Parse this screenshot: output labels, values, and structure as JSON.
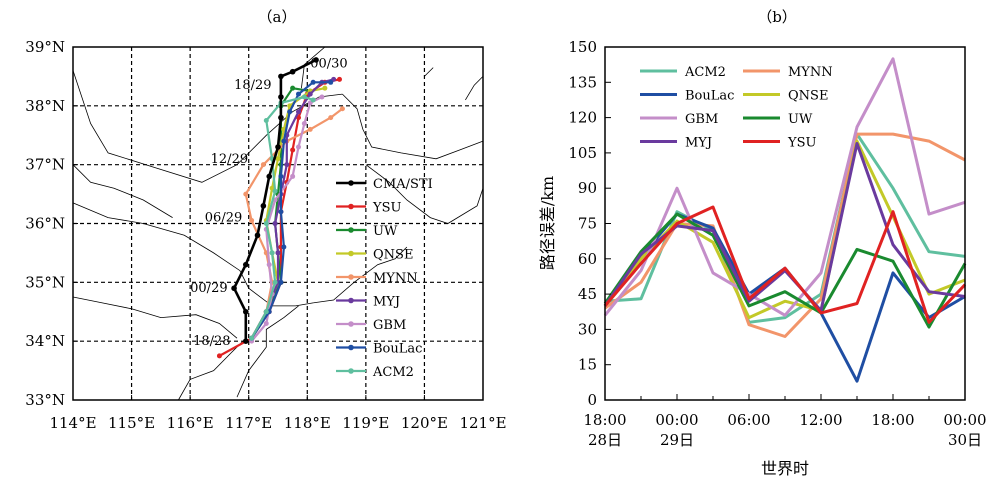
{
  "figure": {
    "panel_a_label": "（a）",
    "panel_b_label": "（b）"
  },
  "chart_data": [
    {
      "type": "line",
      "panel": "a",
      "x_ticks": [
        "114°E",
        "115°E",
        "116°E",
        "117°E",
        "118°E",
        "119°E",
        "120°E",
        "121°E"
      ],
      "y_ticks": [
        "33°N",
        "34°N",
        "35°N",
        "36°N",
        "37°N",
        "38°N",
        "39°N"
      ],
      "xlim": [
        114,
        121
      ],
      "ylim": [
        33,
        39
      ],
      "grid": true,
      "legend_position": "right",
      "time_labels": [
        {
          "text": "00/30",
          "lon": 118.05,
          "lat": 38.72
        },
        {
          "text": "18/29",
          "lon": 116.75,
          "lat": 38.35
        },
        {
          "text": "12/29",
          "lon": 116.35,
          "lat": 37.1
        },
        {
          "text": "06/29",
          "lon": 116.25,
          "lat": 36.1
        },
        {
          "text": "00/29",
          "lon": 116.0,
          "lat": 34.9
        },
        {
          "text": "18/28",
          "lon": 116.05,
          "lat": 34.0
        }
      ],
      "series": [
        {
          "name": "CMA/STI",
          "color": "#000000",
          "points": [
            [
              116.95,
              34.0
            ],
            [
              116.95,
              34.5
            ],
            [
              116.75,
              34.9
            ],
            [
              116.95,
              35.3
            ],
            [
              117.15,
              35.8
            ],
            [
              117.25,
              36.3
            ],
            [
              117.35,
              36.8
            ],
            [
              117.5,
              37.3
            ],
            [
              117.55,
              37.8
            ],
            [
              117.55,
              38.15
            ],
            [
              117.55,
              38.5
            ],
            [
              117.75,
              38.58
            ],
            [
              118.15,
              38.78
            ]
          ]
        },
        {
          "name": "YSU",
          "color": "#e02222",
          "points": [
            [
              116.5,
              33.75
            ],
            [
              117.05,
              34.05
            ],
            [
              117.35,
              34.5
            ],
            [
              117.55,
              35.0
            ],
            [
              117.55,
              35.6
            ],
            [
              117.55,
              36.2
            ],
            [
              117.65,
              36.7
            ],
            [
              117.75,
              37.25
            ],
            [
              117.85,
              37.8
            ],
            [
              118.0,
              38.2
            ],
            [
              118.3,
              38.4
            ],
            [
              118.55,
              38.45
            ]
          ]
        },
        {
          "name": "UW",
          "color": "#1a8a2f",
          "points": [
            [
              117.05,
              34.05
            ],
            [
              117.3,
              34.5
            ],
            [
              117.55,
              35.0
            ],
            [
              117.5,
              35.5
            ],
            [
              117.45,
              36.0
            ],
            [
              117.5,
              36.5
            ],
            [
              117.55,
              37.0
            ],
            [
              117.55,
              37.6
            ],
            [
              117.55,
              38.0
            ],
            [
              117.75,
              38.3
            ],
            [
              118.05,
              38.25
            ]
          ]
        },
        {
          "name": "QNSE",
          "color": "#c3c928",
          "points": [
            [
              117.05,
              34.05
            ],
            [
              117.3,
              34.5
            ],
            [
              117.5,
              35.0
            ],
            [
              117.4,
              35.5
            ],
            [
              117.3,
              36.05
            ],
            [
              117.4,
              36.6
            ],
            [
              117.5,
              37.1
            ],
            [
              117.6,
              37.6
            ],
            [
              117.7,
              38.0
            ],
            [
              118.05,
              38.25
            ],
            [
              118.3,
              38.3
            ]
          ]
        },
        {
          "name": "MYNN",
          "color": "#f2956a",
          "points": [
            [
              117.05,
              34.05
            ],
            [
              117.3,
              34.5
            ],
            [
              117.4,
              35.0
            ],
            [
              117.3,
              35.5
            ],
            [
              117.05,
              36.05
            ],
            [
              116.95,
              36.5
            ],
            [
              117.25,
              37.0
            ],
            [
              117.65,
              37.4
            ],
            [
              118.05,
              37.6
            ],
            [
              118.4,
              37.8
            ],
            [
              118.6,
              37.95
            ]
          ]
        },
        {
          "name": "MYJ",
          "color": "#6a3a9e",
          "points": [
            [
              117.05,
              34.05
            ],
            [
              117.3,
              34.5
            ],
            [
              117.5,
              35.0
            ],
            [
              117.5,
              35.5
            ],
            [
              117.45,
              36.0
            ],
            [
              117.55,
              36.5
            ],
            [
              117.65,
              37.0
            ],
            [
              117.65,
              37.5
            ],
            [
              117.85,
              37.9
            ],
            [
              118.05,
              38.2
            ],
            [
              118.25,
              38.4
            ],
            [
              118.45,
              38.45
            ]
          ]
        },
        {
          "name": "GBM",
          "color": "#c48ec9",
          "points": [
            [
              117.05,
              34.0
            ],
            [
              117.3,
              34.3
            ],
            [
              117.4,
              34.8
            ],
            [
              117.35,
              35.3
            ],
            [
              117.3,
              35.9
            ],
            [
              117.45,
              36.4
            ],
            [
              117.75,
              36.8
            ],
            [
              117.85,
              37.3
            ],
            [
              117.95,
              37.7
            ],
            [
              118.05,
              38.05
            ],
            [
              118.25,
              38.15
            ]
          ]
        },
        {
          "name": "BouLac",
          "color": "#1f4ea3",
          "points": [
            [
              117.05,
              34.05
            ],
            [
              117.35,
              34.5
            ],
            [
              117.55,
              35.0
            ],
            [
              117.6,
              35.6
            ],
            [
              117.55,
              36.2
            ],
            [
              117.55,
              36.8
            ],
            [
              117.6,
              37.4
            ],
            [
              117.7,
              37.9
            ],
            [
              117.85,
              38.2
            ],
            [
              118.1,
              38.4
            ],
            [
              118.4,
              38.4
            ]
          ]
        },
        {
          "name": "ACM2",
          "color": "#5fbf9f",
          "points": [
            [
              117.05,
              34.05
            ],
            [
              117.3,
              34.5
            ],
            [
              117.45,
              35.0
            ],
            [
              117.4,
              35.5
            ],
            [
              117.3,
              36.0
            ],
            [
              117.45,
              36.55
            ],
            [
              117.4,
              37.1
            ],
            [
              117.3,
              37.75
            ],
            [
              117.55,
              38.05
            ],
            [
              117.95,
              38.15
            ],
            [
              118.1,
              38.1
            ]
          ]
        }
      ]
    },
    {
      "type": "line",
      "panel": "b",
      "ylabel": "路径误差/km",
      "xlabel": "世界时",
      "x_hours": [
        0,
        3,
        6,
        9,
        12,
        15,
        18,
        21,
        24,
        27,
        30
      ],
      "x_ticks": [
        {
          "hour": 0,
          "line1": "18:00",
          "line2": "28日"
        },
        {
          "hour": 6,
          "line1": "00:00",
          "line2": "29日"
        },
        {
          "hour": 12,
          "line1": "06:00",
          "line2": ""
        },
        {
          "hour": 18,
          "line1": "12:00",
          "line2": ""
        },
        {
          "hour": 24,
          "line1": "18:00",
          "line2": ""
        },
        {
          "hour": 30,
          "line1": "00:00",
          "line2": "30日"
        }
      ],
      "y_ticks": [
        "0",
        "15",
        "30",
        "45",
        "60",
        "75",
        "90",
        "105",
        "120",
        "135",
        "150"
      ],
      "xlim": [
        0,
        30
      ],
      "ylim": [
        0,
        150
      ],
      "grid": false,
      "legend_position": "top-left",
      "series": [
        {
          "name": "ACM2",
          "color": "#5fbf9f",
          "values": [
            42,
            43,
            80,
            72,
            33,
            35,
            45,
            113,
            90,
            63,
            61
          ]
        },
        {
          "name": "MYNN",
          "color": "#f2956a",
          "values": [
            39,
            50,
            75,
            74,
            32,
            27,
            43,
            113,
            113,
            110,
            102
          ]
        },
        {
          "name": "BouLac",
          "color": "#1f4ea3",
          "values": [
            40,
            61,
            79,
            73,
            45,
            56,
            37,
            8,
            54,
            35,
            44
          ]
        },
        {
          "name": "QNSE",
          "color": "#c3c928",
          "values": [
            40,
            60,
            76,
            67,
            35,
            42,
            38,
            110,
            78,
            45,
            51
          ]
        },
        {
          "name": "GBM",
          "color": "#c48ec9",
          "values": [
            36,
            55,
            90,
            54,
            45,
            36,
            54,
            116,
            145,
            79,
            84
          ]
        },
        {
          "name": "UW",
          "color": "#1a8a2f",
          "values": [
            41,
            63,
            79,
            70,
            40,
            46,
            37,
            64,
            59,
            31,
            58
          ]
        },
        {
          "name": "MYJ",
          "color": "#6a3a9e",
          "values": [
            40,
            62,
            74,
            72,
            42,
            55,
            38,
            109,
            66,
            46,
            44
          ]
        },
        {
          "name": "YSU",
          "color": "#e02222",
          "values": [
            40,
            58,
            75,
            82,
            43,
            56,
            37,
            41,
            80,
            33,
            49
          ]
        }
      ]
    }
  ]
}
